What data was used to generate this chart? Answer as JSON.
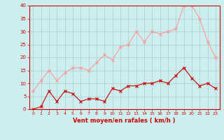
{
  "x": [
    0,
    1,
    2,
    3,
    4,
    5,
    6,
    7,
    8,
    9,
    10,
    11,
    12,
    13,
    14,
    15,
    16,
    17,
    18,
    19,
    20,
    21,
    22,
    23
  ],
  "rafales": [
    7,
    11,
    15,
    11,
    14,
    16,
    16,
    15,
    18,
    21,
    19,
    24,
    25,
    30,
    26,
    30,
    29,
    30,
    31,
    40,
    40,
    35,
    26,
    20
  ],
  "moyen": [
    0,
    1,
    7,
    3,
    7,
    6,
    3,
    4,
    4,
    3,
    8,
    7,
    9,
    9,
    10,
    10,
    11,
    10,
    13,
    16,
    12,
    9,
    10,
    8
  ],
  "color_rafales": "#FF9999",
  "color_moyen": "#CC0000",
  "bg_color": "#CCEEEE",
  "grid_color": "#AACCCC",
  "xlabel": "Vent moyen/en rafales ( km/h )",
  "ylim": [
    0,
    40
  ],
  "xlim_min": -0.5,
  "xlim_max": 23.5,
  "yticks": [
    0,
    5,
    10,
    15,
    20,
    25,
    30,
    35,
    40
  ],
  "xticks": [
    0,
    1,
    2,
    3,
    4,
    5,
    6,
    7,
    8,
    9,
    10,
    11,
    12,
    13,
    14,
    15,
    16,
    17,
    18,
    19,
    20,
    21,
    22,
    23
  ],
  "marker_style": "x",
  "linewidth": 0.8,
  "markersize": 3
}
